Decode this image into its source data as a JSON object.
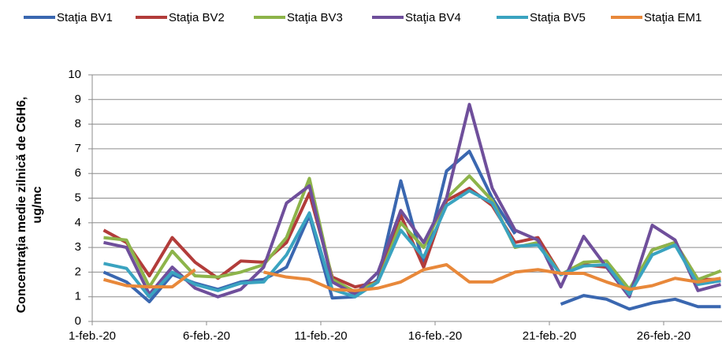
{
  "chart_data": {
    "type": "line",
    "y_label": [
      "Concentraţia medie zilnică de C6H6,",
      "ug/mc"
    ],
    "categories": [
      "1-feb.-20",
      null,
      null,
      null,
      null,
      "6-feb.-20",
      null,
      null,
      null,
      null,
      "11-feb.-20",
      null,
      null,
      null,
      null,
      "16-feb.-20",
      null,
      null,
      null,
      null,
      "21-feb.-20",
      null,
      null,
      null,
      null,
      "26-feb.-20",
      null,
      null
    ],
    "series": [
      {
        "name": "Staţia BV1",
        "color": "#3a67b0",
        "values": [
          2.0,
          1.6,
          0.8,
          1.9,
          1.55,
          1.3,
          1.6,
          1.7,
          2.2,
          4.3,
          0.95,
          1.0,
          1.7,
          5.7,
          2.3,
          6.1,
          6.9,
          5.0,
          3.55,
          null,
          0.7,
          1.05,
          0.9,
          0.5,
          0.75,
          0.9,
          0.6,
          0.6
        ]
      },
      {
        "name": "Staţia BV2",
        "color": "#b23c3a",
        "values": [
          3.7,
          3.2,
          1.85,
          3.4,
          2.4,
          1.75,
          2.45,
          2.4,
          3.2,
          5.2,
          1.8,
          1.4,
          1.6,
          4.3,
          2.2,
          4.9,
          5.4,
          4.7,
          3.2,
          3.4,
          1.9,
          2.3,
          2.2,
          1.2,
          2.9,
          3.2,
          1.7,
          1.7
        ]
      },
      {
        "name": "Staţia BV3",
        "color": "#8db44a",
        "values": [
          3.4,
          3.3,
          1.4,
          2.85,
          1.85,
          1.8,
          2.0,
          2.3,
          3.4,
          5.8,
          1.7,
          1.2,
          1.6,
          4.0,
          3.0,
          5.0,
          5.9,
          4.9,
          3.0,
          3.2,
          1.9,
          2.4,
          2.45,
          1.3,
          2.9,
          3.2,
          1.7,
          2.05
        ]
      },
      {
        "name": "Staţia BV4",
        "color": "#6f4f9b",
        "values": [
          3.2,
          3.0,
          1.1,
          2.2,
          1.35,
          1.0,
          1.3,
          2.2,
          4.8,
          5.5,
          1.6,
          1.1,
          2.0,
          4.5,
          3.2,
          5.0,
          8.8,
          5.4,
          3.7,
          3.3,
          1.4,
          3.45,
          2.2,
          1.0,
          3.9,
          3.3,
          1.25,
          1.5
        ]
      },
      {
        "name": "Staţia BV5",
        "color": "#3aa3c0",
        "values": [
          2.35,
          2.15,
          1.0,
          2.0,
          1.5,
          1.25,
          1.55,
          1.6,
          2.7,
          4.4,
          1.3,
          1.0,
          1.6,
          3.7,
          2.6,
          4.7,
          5.3,
          4.8,
          3.05,
          3.1,
          1.9,
          2.25,
          2.3,
          1.1,
          2.7,
          3.1,
          1.5,
          1.65
        ]
      },
      {
        "name": "Staţia EM1",
        "color": "#e8883a",
        "values": [
          1.7,
          1.45,
          1.4,
          1.4,
          2.1,
          null,
          null,
          2.0,
          1.8,
          1.7,
          1.3,
          1.25,
          1.35,
          1.6,
          2.1,
          2.3,
          1.6,
          1.6,
          2.0,
          2.1,
          1.95,
          1.95,
          1.6,
          1.3,
          1.45,
          1.75,
          1.6,
          1.75
        ]
      }
    ],
    "ylim": [
      0,
      10
    ],
    "yticks": [
      0,
      1,
      2,
      3,
      4,
      5,
      6,
      7,
      8,
      9,
      10
    ],
    "grid": true
  }
}
